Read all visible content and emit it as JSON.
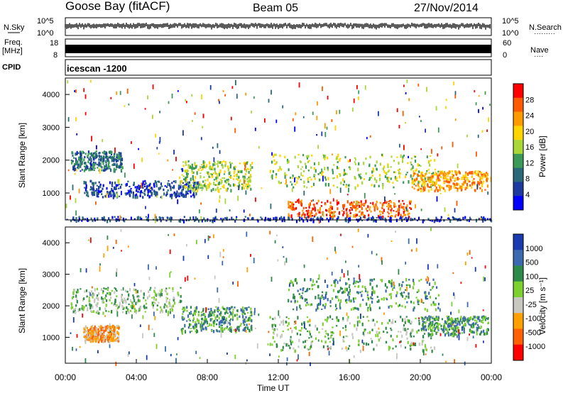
{
  "header": {
    "station": "Goose Bay (fitACF)",
    "beam": "Beam 05",
    "date": "27/Nov/2014"
  },
  "noise_panel": {
    "left_label": "N.Sky",
    "left_ticks": [
      "10^5",
      "10^0"
    ],
    "right_ticks": [
      "10^5",
      "10^0"
    ],
    "right_label": "N.Search",
    "right_dots": "·········"
  },
  "freq_panel": {
    "left_label_top": "Freq.",
    "left_label_bottom": "[MHz]",
    "left_ticks": [
      "18",
      "8"
    ],
    "right_ticks": [
      "60",
      "0"
    ],
    "right_label": "Nave",
    "right_dots": "····"
  },
  "cpid_panel": {
    "label": "CPID",
    "text": "icescan -1200"
  },
  "chart_data": [
    {
      "type": "heatmap",
      "name": "power",
      "ylabel": "Slant Range [km]",
      "yticks": [
        "4000",
        "3000",
        "2000",
        "1000"
      ],
      "ylim": [
        180,
        4500
      ],
      "xlim": [
        0,
        24
      ],
      "colorbar": {
        "label": "Power [dB]",
        "ticks": [
          "28",
          "24",
          "20",
          "16",
          "12",
          "8",
          "4"
        ],
        "colors": [
          "#ff0000",
          "#ff5a00",
          "#ff9a00",
          "#ffd400",
          "#a8d838",
          "#3c9a58",
          "#2a6a78",
          "#1c3aa0",
          "#0000ff"
        ]
      },
      "bands": [
        {
          "t0": 0.3,
          "t1": 3.2,
          "r0": 1700,
          "r1": 2300,
          "level": 2
        },
        {
          "t0": 1.0,
          "t1": 7.5,
          "r0": 900,
          "r1": 1400,
          "level": 1
        },
        {
          "t0": 6.5,
          "t1": 10.5,
          "r0": 1100,
          "r1": 2000,
          "level": 4
        },
        {
          "t0": 11.5,
          "t1": 21.0,
          "r0": 1200,
          "r1": 2200,
          "level": 4
        },
        {
          "t0": 12.5,
          "t1": 19.5,
          "r0": 300,
          "r1": 800,
          "level": 7
        },
        {
          "t0": 19.5,
          "t1": 23.8,
          "r0": 1100,
          "r1": 1700,
          "level": 6
        },
        {
          "t0": 0.0,
          "t1": 24.0,
          "r0": 180,
          "r1": 300,
          "level": 1
        }
      ]
    },
    {
      "type": "heatmap",
      "name": "velocity",
      "ylabel": "Slant Range [km]",
      "yticks": [
        "4000",
        "3000",
        "2000",
        "1000"
      ],
      "ylim": [
        180,
        4500
      ],
      "xlim": [
        0,
        24
      ],
      "colorbar": {
        "label": "Velocity [m s⁻¹]",
        "ticks": [
          "1000",
          "500",
          "100",
          "25",
          "-25",
          "-100",
          "-500",
          "-1000"
        ],
        "colors": [
          "#1a3ab0",
          "#3c6ab0",
          "#2e8a4a",
          "#7cd030",
          "#c8c8c0",
          "#ffa000",
          "#ff6000",
          "#ff0000"
        ]
      },
      "bands": [
        {
          "t0": 0.3,
          "t1": 6.5,
          "r0": 1800,
          "r1": 2600,
          "level": 4
        },
        {
          "t0": 1.0,
          "t1": 3.0,
          "r0": 900,
          "r1": 1400,
          "level": 2
        },
        {
          "t0": 6.5,
          "t1": 10.5,
          "r0": 1200,
          "r1": 2000,
          "level": 5
        },
        {
          "t0": 11.5,
          "t1": 21.0,
          "r0": 600,
          "r1": 1700,
          "level": 4
        },
        {
          "t0": 12.5,
          "t1": 21.0,
          "r0": 1900,
          "r1": 2900,
          "level": 5
        },
        {
          "t0": 20.0,
          "t1": 23.8,
          "r0": 1100,
          "r1": 1700,
          "level": 5
        }
      ]
    }
  ],
  "xaxis": {
    "ticks": [
      "00:00",
      "04:00",
      "08:00",
      "12:00",
      "16:00",
      "20:00",
      "00:00"
    ],
    "label": "Time UT"
  }
}
